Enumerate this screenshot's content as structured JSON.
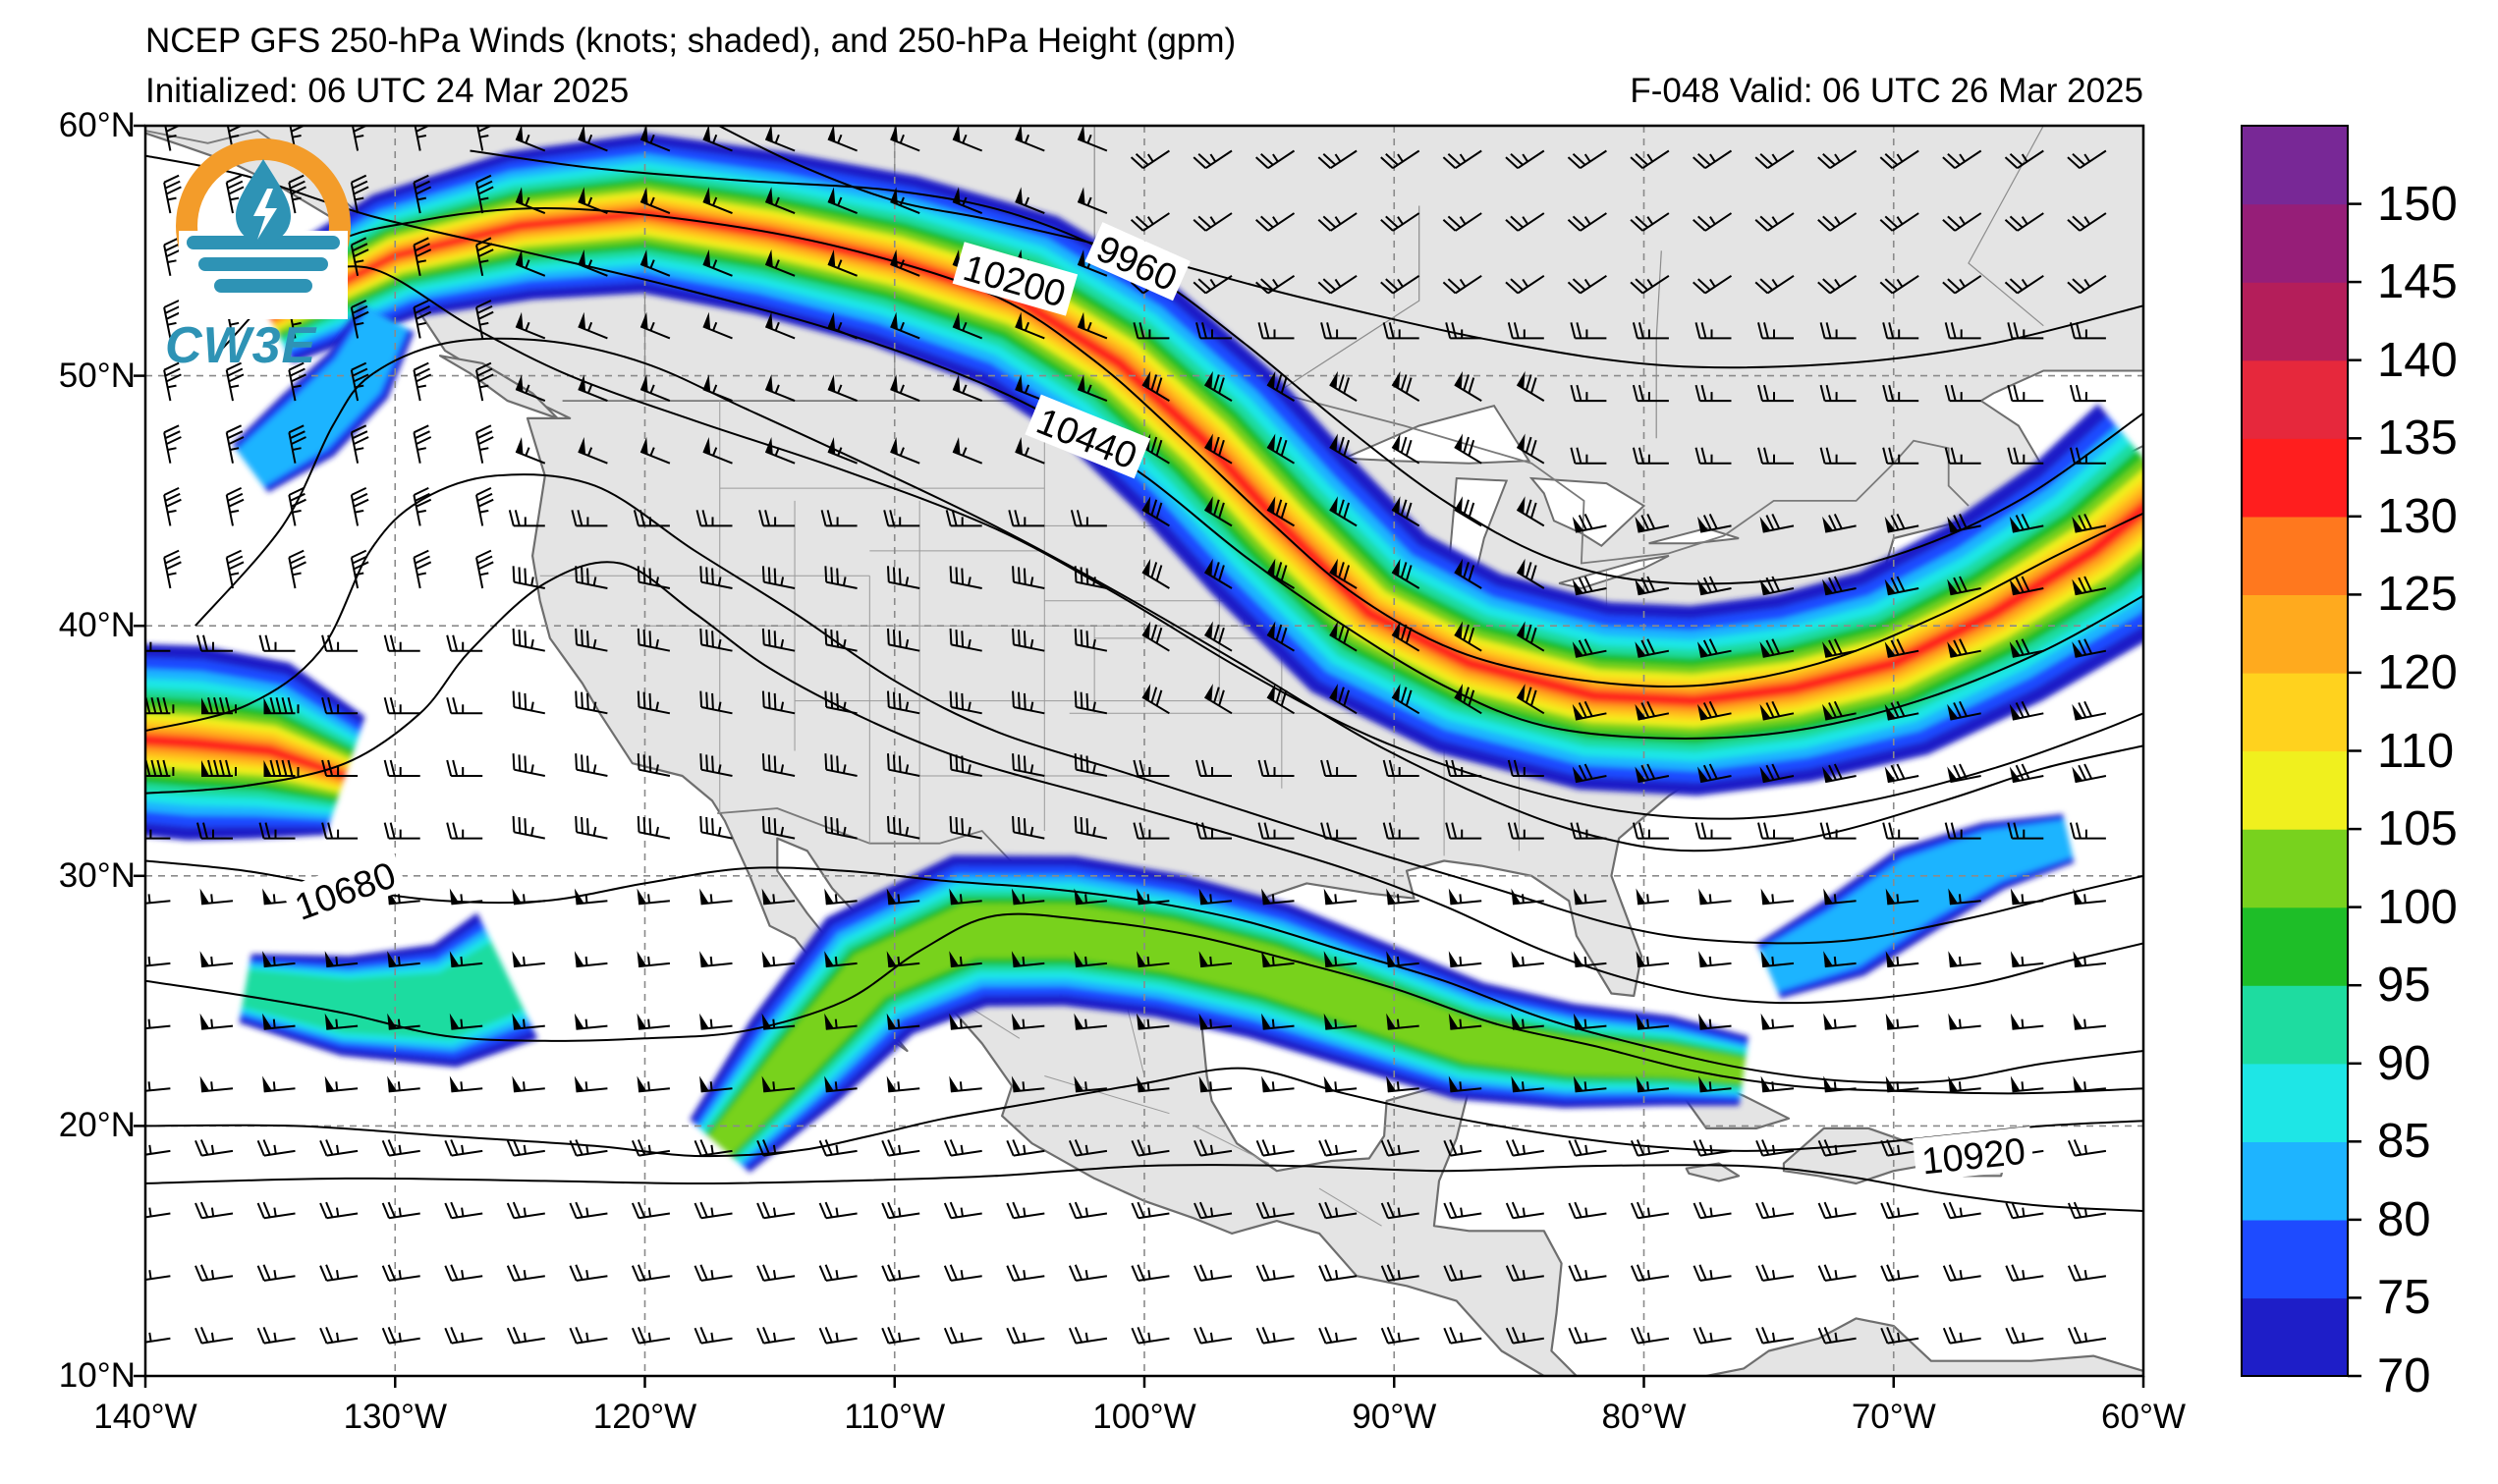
{
  "title": {
    "line1": "NCEP GFS 250-hPa Winds (knots; shaded), and 250-hPa Height (gpm)",
    "init": "Initialized: 06 UTC 24 Mar 2025",
    "valid": "F-048  Valid: 06 UTC 26 Mar 2025"
  },
  "logo": {
    "text": "CW3E",
    "icon": "water-drop-lightning-icon"
  },
  "map_extent": {
    "lon": [
      -140,
      -60
    ],
    "lat": [
      10,
      60
    ]
  },
  "lat_labels": [
    "60°N",
    "50°N",
    "40°N",
    "30°N",
    "20°N",
    "10°N"
  ],
  "lat_values": [
    60,
    50,
    40,
    30,
    20,
    10
  ],
  "lon_labels": [
    "140°W",
    "130°W",
    "120°W",
    "110°W",
    "100°W",
    "90°W",
    "80°W",
    "70°W",
    "60°W"
  ],
  "lon_values": [
    -140,
    -130,
    -120,
    -110,
    -100,
    -90,
    -80,
    -70,
    -60
  ],
  "contour_labels": [
    {
      "text": "9960",
      "lon": -100.3,
      "lat": 54.5
    },
    {
      "text": "10200",
      "lon": -105.2,
      "lat": 53.8
    },
    {
      "text": "10440",
      "lon": -102.3,
      "lat": 47.5
    },
    {
      "text": "10680",
      "lon": -132,
      "lat": 29.4
    },
    {
      "text": "10920",
      "lon": -66.8,
      "lat": 18.8
    }
  ],
  "colorbar": {
    "labels": [
      "150",
      "145",
      "140",
      "135",
      "130",
      "125",
      "120",
      "110",
      "105",
      "100",
      "95",
      "90",
      "85",
      "80",
      "75",
      "70"
    ],
    "colors": [
      "#1e1ec8",
      "#1e4bff",
      "#1eb4ff",
      "#1ee6e6",
      "#1edca0",
      "#1ebe28",
      "#78d21e",
      "#f0f01e",
      "#ffd21e",
      "#ffaa1e",
      "#ff781e",
      "#ff1e1e",
      "#e6283c",
      "#b41e5a",
      "#961e78",
      "#782896"
    ]
  },
  "colors": {
    "land": "#e4e4e4",
    "coast": "#6e6e6e",
    "grid": "#8a8a8a"
  }
}
